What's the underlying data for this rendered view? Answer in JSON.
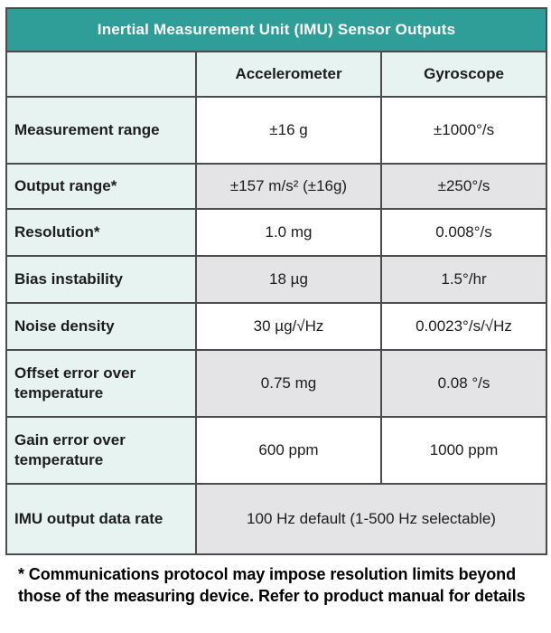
{
  "title": "Inertial Measurement Unit (IMU) Sensor Outputs",
  "columns": {
    "label": "",
    "accelerometer": "Accelerometer",
    "gyroscope": "Gyroscope"
  },
  "rows": [
    {
      "label": "Measurement range",
      "accel": "±16 g",
      "gyro": "±1000°/s",
      "shade": "white"
    },
    {
      "label": "Output range*",
      "accel": "±157 m/s² (±16g)",
      "gyro": "±250°/s",
      "shade": "gray"
    },
    {
      "label": "Resolution*",
      "accel": "1.0 mg",
      "gyro": "0.008°/s",
      "shade": "white"
    },
    {
      "label": "Bias instability",
      "accel": "18 µg",
      "gyro": "1.5°/hr",
      "shade": "gray"
    },
    {
      "label": "Noise density",
      "accel": "30 µg/√Hz",
      "gyro": "0.0023°/s/√Hz",
      "shade": "white"
    },
    {
      "label": "Offset error over temperature",
      "accel": "0.75 mg",
      "gyro": "0.08 °/s",
      "shade": "gray"
    },
    {
      "label": "Gain error over temperature",
      "accel": "600 ppm",
      "gyro": "1000 ppm",
      "shade": "white"
    },
    {
      "label": "IMU output data rate",
      "merged_value": "100 Hz default (1-500 Hz selectable)",
      "shade": "gray"
    }
  ],
  "footnote": "* Communications protocol may impose resolution limits beyond those of the measuring device. Refer to product manual for details",
  "colors": {
    "accent_teal": "#2f9e99",
    "mint_cell": "#e7f3f1",
    "gray_cell": "#e4e4e6",
    "border": "#4b4b4b",
    "title_text": "#ffffff"
  }
}
